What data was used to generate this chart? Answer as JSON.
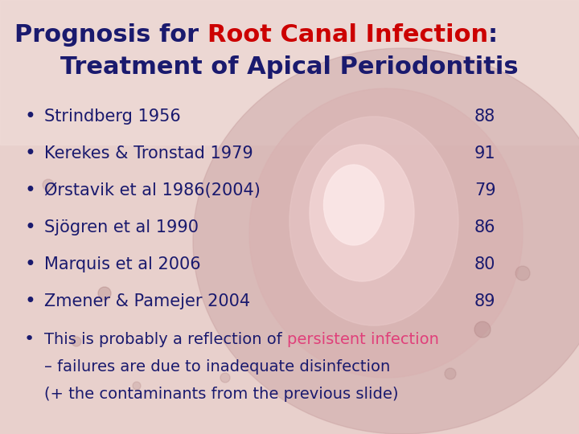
{
  "title_part1": "Prognosis for ",
  "title_part2": "Root Canal Infection",
  "title_part3": ":",
  "title_line2": "Treatment of Apical Periodontitis",
  "title_color1": "#1a1a6e",
  "title_color2": "#cc0000",
  "bullet_items": [
    {
      "text": "Strindberg 1956",
      "value": "88"
    },
    {
      "text": "Kerekes & Tronstad 1979",
      "value": "91"
    },
    {
      "text": "Ørstavik et al 1986(2004)",
      "value": "79"
    },
    {
      "text": "Sjögren et al 1990",
      "value": "86"
    },
    {
      "text": "Marquis et al 2006",
      "value": "80"
    },
    {
      "text": "Zmener & Pamejer 2004",
      "value": "89"
    }
  ],
  "bullet_color": "#1a1a6e",
  "footer_part1": "This is probably a reflection of ",
  "footer_part2": "persistent infection",
  "footer_line2": "– failures are due to inadequate disinfection",
  "footer_line3": "(+ the contaminants from the previous slide)",
  "footer_color1": "#1a1a6e",
  "footer_color2": "#e0407a",
  "bg_base": "#d8b8b8",
  "figsize": [
    7.2,
    5.4
  ],
  "dpi": 100,
  "fs_title": 22,
  "fs_bullet": 15,
  "fs_footer": 14
}
